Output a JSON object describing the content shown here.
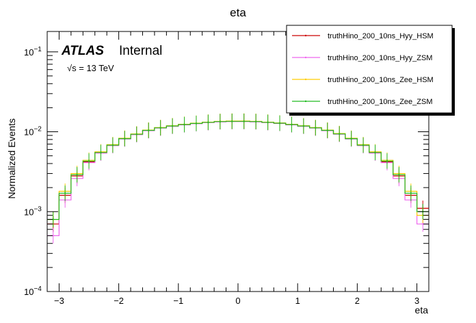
{
  "chart_data": {
    "type": "line",
    "title": "eta",
    "xlabel": "eta",
    "ylabel": "Normalized Events",
    "xlim": [
      -3.2,
      3.2
    ],
    "ylim": [
      0.0001,
      0.18
    ],
    "yscale": "log",
    "x_ticks": [
      -3,
      -2,
      -1,
      0,
      1,
      2,
      3
    ],
    "y_ticks": [
      {
        "value": 0.0001,
        "base": "10",
        "exp": "−4"
      },
      {
        "value": 0.001,
        "base": "10",
        "exp": "−3"
      },
      {
        "value": 0.01,
        "base": "10",
        "exp": "−2"
      },
      {
        "value": 0.1,
        "base": "10",
        "exp": "−1"
      }
    ],
    "grid": false,
    "legend_position": "top-right",
    "annotation": {
      "atlas": "ATLAS",
      "internal": "Internal",
      "energy": "√s = 13 TeV"
    },
    "x": [
      -3.1,
      -2.9,
      -2.7,
      -2.5,
      -2.3,
      -2.1,
      -1.9,
      -1.7,
      -1.5,
      -1.3,
      -1.1,
      -0.9,
      -0.7,
      -0.5,
      -0.3,
      -0.1,
      0.1,
      0.3,
      0.5,
      0.7,
      0.9,
      1.1,
      1.3,
      1.5,
      1.7,
      1.9,
      2.1,
      2.3,
      2.5,
      2.7,
      2.9,
      3.1
    ],
    "series": [
      {
        "name": "truthHino_200_10ns_Hyy_HSM",
        "color": "#cc0000",
        "values": [
          0.0007,
          0.0016,
          0.0028,
          0.0042,
          0.0055,
          0.0068,
          0.0082,
          0.0093,
          0.0104,
          0.0112,
          0.0118,
          0.0123,
          0.0127,
          0.0131,
          0.0134,
          0.0135,
          0.0135,
          0.0134,
          0.0131,
          0.0128,
          0.0123,
          0.0118,
          0.0112,
          0.0104,
          0.0094,
          0.0082,
          0.0068,
          0.0055,
          0.0042,
          0.0028,
          0.0016,
          0.0011
        ]
      },
      {
        "name": "truthHino_200_10ns_Hyy_ZSM",
        "color": "#ee66ee",
        "values": [
          0.0005,
          0.0014,
          0.0026,
          0.0041,
          0.0054,
          0.0067,
          0.0081,
          0.0092,
          0.0103,
          0.0111,
          0.0117,
          0.0122,
          0.0126,
          0.013,
          0.0133,
          0.0134,
          0.0134,
          0.0133,
          0.013,
          0.0127,
          0.0122,
          0.0117,
          0.0111,
          0.0103,
          0.0093,
          0.0081,
          0.0067,
          0.0054,
          0.0041,
          0.0026,
          0.0014,
          0.0007
        ]
      },
      {
        "name": "truthHino_200_10ns_Zee_HSM",
        "color": "#ffcc00",
        "values": [
          0.0008,
          0.0018,
          0.003,
          0.0044,
          0.0056,
          0.0069,
          0.0083,
          0.0094,
          0.0105,
          0.0113,
          0.0119,
          0.0124,
          0.0128,
          0.0132,
          0.0135,
          0.0136,
          0.0136,
          0.0135,
          0.0132,
          0.0129,
          0.0124,
          0.0119,
          0.0113,
          0.0105,
          0.0095,
          0.0083,
          0.0069,
          0.0056,
          0.0044,
          0.003,
          0.0018,
          0.0009
        ]
      },
      {
        "name": "truthHino_200_10ns_Zee_ZSM",
        "color": "#22bb22",
        "values": [
          0.0008,
          0.0017,
          0.0029,
          0.0043,
          0.0055,
          0.0068,
          0.0082,
          0.0093,
          0.0104,
          0.0112,
          0.0118,
          0.0123,
          0.0127,
          0.0131,
          0.0134,
          0.0135,
          0.0135,
          0.0134,
          0.0131,
          0.0128,
          0.0123,
          0.0118,
          0.0112,
          0.0104,
          0.0094,
          0.0082,
          0.0068,
          0.0055,
          0.0043,
          0.0029,
          0.0017,
          0.001
        ]
      }
    ]
  }
}
